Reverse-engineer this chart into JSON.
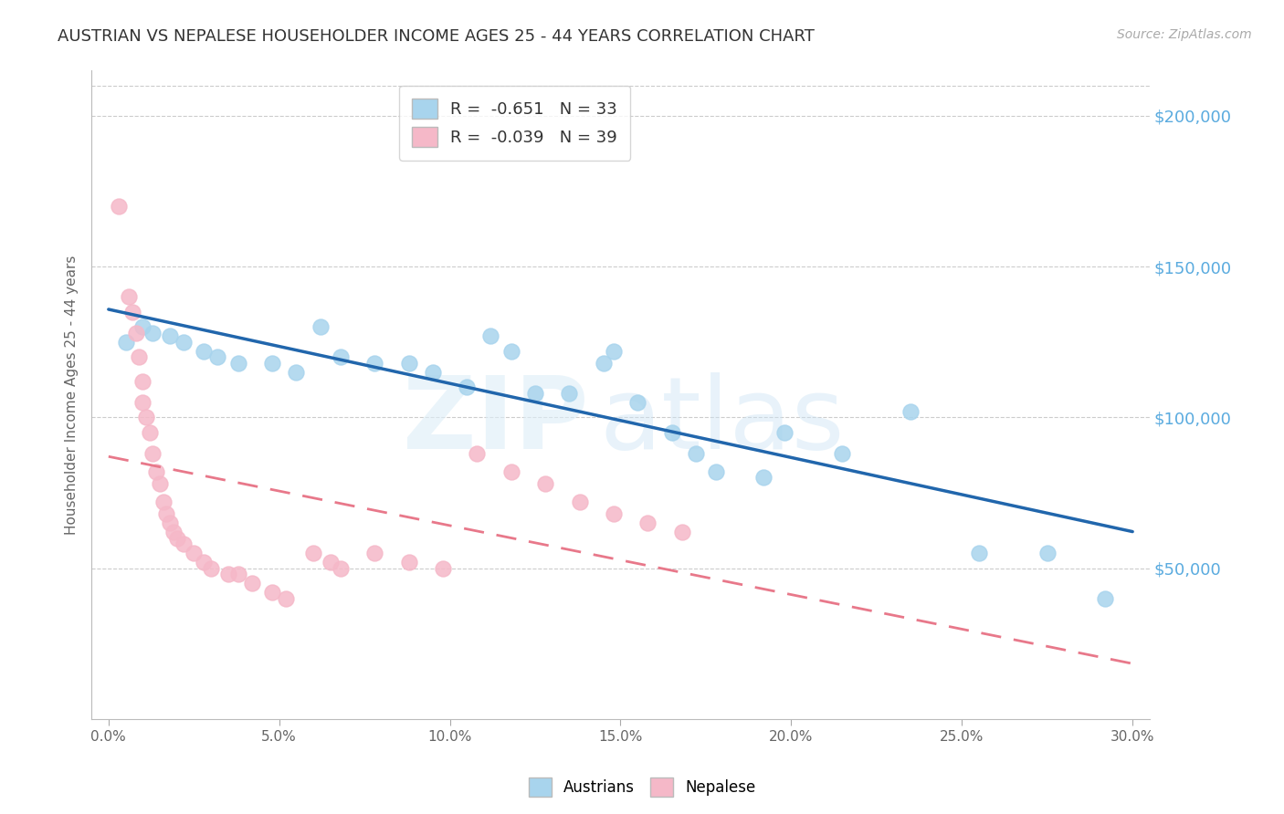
{
  "title": "AUSTRIAN VS NEPALESE HOUSEHOLDER INCOME AGES 25 - 44 YEARS CORRELATION CHART",
  "source": "Source: ZipAtlas.com",
  "ylabel": "Householder Income Ages 25 - 44 years",
  "xlabel_ticks": [
    "0.0%",
    "5.0%",
    "10.0%",
    "15.0%",
    "20.0%",
    "25.0%",
    "30.0%"
  ],
  "xlabel_vals": [
    0.0,
    0.05,
    0.1,
    0.15,
    0.2,
    0.25,
    0.3
  ],
  "ytick_labels": [
    "$50,000",
    "$100,000",
    "$150,000",
    "$200,000"
  ],
  "ytick_vals": [
    50000,
    100000,
    150000,
    200000
  ],
  "ylim": [
    0,
    215000
  ],
  "xlim": [
    -0.005,
    0.305
  ],
  "legend_austrians": "R =  -0.651   N = 33",
  "legend_nepalese": "R =  -0.039   N = 39",
  "austrians_color": "#a8d4ed",
  "nepalese_color": "#f5b8c8",
  "austrians_line_color": "#2166ac",
  "nepalese_line_color": "#e8788a",
  "austrians_x": [
    0.005,
    0.01,
    0.013,
    0.018,
    0.022,
    0.028,
    0.032,
    0.038,
    0.048,
    0.055,
    0.062,
    0.068,
    0.078,
    0.088,
    0.095,
    0.105,
    0.112,
    0.118,
    0.125,
    0.135,
    0.145,
    0.148,
    0.155,
    0.165,
    0.172,
    0.178,
    0.192,
    0.198,
    0.215,
    0.235,
    0.255,
    0.275,
    0.292
  ],
  "austrians_y": [
    125000,
    130000,
    128000,
    127000,
    125000,
    122000,
    120000,
    118000,
    118000,
    115000,
    130000,
    120000,
    118000,
    118000,
    115000,
    110000,
    127000,
    122000,
    108000,
    108000,
    118000,
    122000,
    105000,
    95000,
    88000,
    82000,
    80000,
    95000,
    88000,
    102000,
    55000,
    55000,
    40000
  ],
  "nepalese_x": [
    0.003,
    0.006,
    0.007,
    0.008,
    0.009,
    0.01,
    0.01,
    0.011,
    0.012,
    0.013,
    0.014,
    0.015,
    0.016,
    0.017,
    0.018,
    0.019,
    0.02,
    0.022,
    0.025,
    0.028,
    0.03,
    0.035,
    0.038,
    0.042,
    0.048,
    0.052,
    0.06,
    0.065,
    0.068,
    0.078,
    0.088,
    0.098,
    0.108,
    0.118,
    0.128,
    0.138,
    0.148,
    0.158,
    0.168
  ],
  "nepalese_y": [
    170000,
    140000,
    135000,
    128000,
    120000,
    112000,
    105000,
    100000,
    95000,
    88000,
    82000,
    78000,
    72000,
    68000,
    65000,
    62000,
    60000,
    58000,
    55000,
    52000,
    50000,
    48000,
    48000,
    45000,
    42000,
    40000,
    55000,
    52000,
    50000,
    55000,
    52000,
    50000,
    88000,
    82000,
    78000,
    72000,
    68000,
    65000,
    62000
  ]
}
